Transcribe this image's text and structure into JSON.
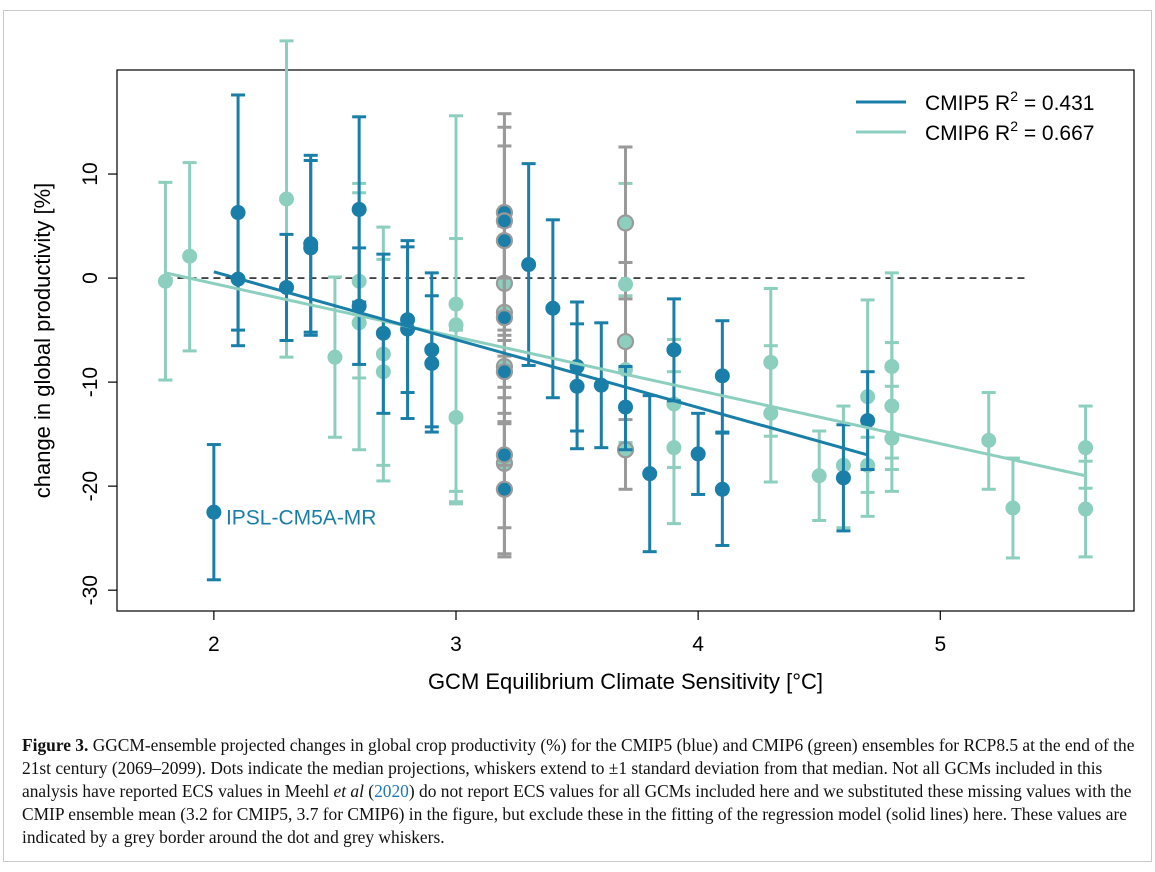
{
  "chart_data": {
    "type": "scatter",
    "xlabel": "GCM Equilibrium Climate Sensitivity [°C]",
    "ylabel": "change in global productivity [%]",
    "xlim": [
      1.6,
      5.8
    ],
    "ylim": [
      -32,
      20
    ],
    "x_ticks": [
      2,
      3,
      4,
      5
    ],
    "y_ticks": [
      -30,
      -20,
      -10,
      0,
      10
    ],
    "reference_line": 0,
    "annotation": "IPSL-CM5A-MR",
    "colors": {
      "cmip5": "#1a7fa8",
      "cmip6": "#8dcfbf",
      "grey": "#9a9a9a"
    },
    "legend": [
      {
        "series": "cmip5",
        "name": "CMIP5",
        "stat": "R",
        "sup": "2",
        "value": " = 0.431"
      },
      {
        "series": "cmip6",
        "name": "CMIP6",
        "stat": "R",
        "sup": "2",
        "value": " = 0.667"
      }
    ],
    "series": [
      {
        "name": "CMIP6",
        "key": "cmip6",
        "fit": {
          "x": [
            1.8,
            5.6
          ],
          "y": [
            0.5,
            -19.0
          ]
        },
        "points": [
          {
            "x": 1.8,
            "y": -0.3,
            "lo": -9.8,
            "hi": 9.2
          },
          {
            "x": 1.9,
            "y": 2.1,
            "lo": -7.0,
            "hi": 11.1
          },
          {
            "x": 2.3,
            "y": 7.6,
            "lo": -7.6,
            "hi": 22.8
          },
          {
            "x": 2.5,
            "y": -7.6,
            "lo": -15.3,
            "hi": 0.1
          },
          {
            "x": 2.6,
            "y": -0.3,
            "lo": -9.6,
            "hi": 9.1
          },
          {
            "x": 2.6,
            "y": -4.3,
            "lo": -16.5,
            "hi": 8.2
          },
          {
            "x": 2.7,
            "y": -7.3,
            "lo": -18.0,
            "hi": 4.9
          },
          {
            "x": 2.7,
            "y": -9.0,
            "lo": -19.5,
            "hi": 1.8
          },
          {
            "x": 3.0,
            "y": -2.5,
            "lo": -21.5,
            "hi": 15.6
          },
          {
            "x": 3.0,
            "y": -4.5,
            "lo": -20.5,
            "hi": 3.8
          },
          {
            "x": 3.0,
            "y": -13.4,
            "lo": -21.7,
            "hi": -5.0
          },
          {
            "x": 3.7,
            "y": -0.6,
            "lo": -16.0,
            "hi": 9.1
          },
          {
            "x": 3.7,
            "y": -8.8,
            "lo": -15.8,
            "hi": -1.7
          },
          {
            "x": 3.9,
            "y": -12.1,
            "lo": -18.2,
            "hi": -5.9
          },
          {
            "x": 3.9,
            "y": -16.3,
            "lo": -23.6,
            "hi": -9.0
          },
          {
            "x": 4.3,
            "y": -8.1,
            "lo": -15.2,
            "hi": -1.0
          },
          {
            "x": 4.3,
            "y": -13.0,
            "lo": -19.6,
            "hi": -6.5
          },
          {
            "x": 4.5,
            "y": -19.0,
            "lo": -23.3,
            "hi": -14.7
          },
          {
            "x": 4.6,
            "y": -18.0,
            "lo": -24.0,
            "hi": -12.3
          },
          {
            "x": 4.7,
            "y": -11.4,
            "lo": -22.9,
            "hi": -2.1
          },
          {
            "x": 4.7,
            "y": -18.0,
            "lo": -20.6,
            "hi": -15.3
          },
          {
            "x": 4.8,
            "y": -8.5,
            "lo": -17.3,
            "hi": 0.5
          },
          {
            "x": 4.8,
            "y": -12.3,
            "lo": -18.4,
            "hi": -6.2
          },
          {
            "x": 4.8,
            "y": -15.4,
            "lo": -20.5,
            "hi": -10.4
          },
          {
            "x": 5.2,
            "y": -15.6,
            "lo": -20.3,
            "hi": -11.0
          },
          {
            "x": 5.3,
            "y": -22.1,
            "lo": -26.9,
            "hi": -17.3
          },
          {
            "x": 5.6,
            "y": -16.3,
            "lo": -20.2,
            "hi": -12.3
          },
          {
            "x": 5.6,
            "y": -22.2,
            "lo": -26.8,
            "hi": -17.6
          },
          {
            "x": 3.7,
            "y": 5.3,
            "lo": -2.0,
            "hi": 12.6,
            "grey": true
          },
          {
            "x": 3.7,
            "y": -6.1,
            "lo": -13.6,
            "hi": 1.5,
            "grey": true
          },
          {
            "x": 3.7,
            "y": -16.5,
            "lo": -20.3,
            "hi": -12.6,
            "grey": true
          },
          {
            "x": 3.2,
            "y": -0.5,
            "lo": -6.0,
            "hi": 5.0,
            "grey": true
          },
          {
            "x": 3.2,
            "y": -3.3,
            "lo": -10.5,
            "hi": 3.8,
            "grey": true
          },
          {
            "x": 3.2,
            "y": -8.5,
            "lo": -14.0,
            "hi": -3.0,
            "grey": true
          },
          {
            "x": 3.2,
            "y": -17.8,
            "lo": -24.0,
            "hi": -11.5,
            "grey": true
          }
        ]
      },
      {
        "name": "CMIP5",
        "key": "cmip5",
        "fit": {
          "x": [
            2.0,
            4.7
          ],
          "y": [
            0.6,
            -17.0
          ]
        },
        "points": [
          {
            "x": 2.0,
            "y": -22.5,
            "lo": -29.0,
            "hi": -16.0
          },
          {
            "x": 2.1,
            "y": 6.3,
            "lo": -5.0,
            "hi": 17.6
          },
          {
            "x": 2.1,
            "y": -0.1,
            "lo": -6.5,
            "hi": 6.3
          },
          {
            "x": 2.3,
            "y": -0.9,
            "lo": -6.0,
            "hi": 4.2
          },
          {
            "x": 2.4,
            "y": 3.3,
            "lo": -5.2,
            "hi": 11.8
          },
          {
            "x": 2.4,
            "y": 2.9,
            "lo": -5.5,
            "hi": 11.3
          },
          {
            "x": 2.6,
            "y": 6.6,
            "lo": -2.3,
            "hi": 15.5
          },
          {
            "x": 2.6,
            "y": -2.7,
            "lo": -8.3,
            "hi": 2.9
          },
          {
            "x": 2.7,
            "y": -5.3,
            "lo": -13.0,
            "hi": 2.3
          },
          {
            "x": 2.8,
            "y": -4.0,
            "lo": -11.0,
            "hi": 3.6
          },
          {
            "x": 2.8,
            "y": -4.9,
            "lo": -13.5,
            "hi": 3.0
          },
          {
            "x": 2.9,
            "y": -6.9,
            "lo": -14.3,
            "hi": 0.5
          },
          {
            "x": 2.9,
            "y": -8.2,
            "lo": -14.8,
            "hi": -1.7
          },
          {
            "x": 3.3,
            "y": 1.3,
            "lo": -8.4,
            "hi": 11.0
          },
          {
            "x": 3.4,
            "y": -2.9,
            "lo": -11.5,
            "hi": 5.6
          },
          {
            "x": 3.5,
            "y": -8.5,
            "lo": -14.7,
            "hi": -2.3
          },
          {
            "x": 3.5,
            "y": -10.4,
            "lo": -16.4,
            "hi": -4.4
          },
          {
            "x": 3.6,
            "y": -10.3,
            "lo": -16.3,
            "hi": -4.3
          },
          {
            "x": 3.7,
            "y": -12.4,
            "lo": -16.5,
            "hi": -8.5
          },
          {
            "x": 3.8,
            "y": -18.8,
            "lo": -26.3,
            "hi": -11.3
          },
          {
            "x": 3.9,
            "y": -6.9,
            "lo": -11.8,
            "hi": -2.0
          },
          {
            "x": 4.0,
            "y": -16.9,
            "lo": -20.8,
            "hi": -13.0
          },
          {
            "x": 4.1,
            "y": -9.4,
            "lo": -14.8,
            "hi": -4.1
          },
          {
            "x": 4.1,
            "y": -20.3,
            "lo": -25.7,
            "hi": -14.9
          },
          {
            "x": 4.6,
            "y": -19.2,
            "lo": -24.3,
            "hi": -14.1
          },
          {
            "x": 4.7,
            "y": -13.7,
            "lo": -18.4,
            "hi": -9.0
          },
          {
            "x": 3.2,
            "y": 6.3,
            "lo": -5.0,
            "hi": 15.8,
            "grey": true
          },
          {
            "x": 3.2,
            "y": 5.5,
            "lo": -4.0,
            "hi": 14.5,
            "grey": true
          },
          {
            "x": 3.2,
            "y": 3.6,
            "lo": -5.5,
            "hi": 12.7,
            "grey": true
          },
          {
            "x": 3.2,
            "y": -3.8,
            "lo": -13.0,
            "hi": 5.4,
            "grey": true
          },
          {
            "x": 3.2,
            "y": -9.0,
            "lo": -18.0,
            "hi": 0.0,
            "grey": true
          },
          {
            "x": 3.2,
            "y": -17.0,
            "lo": -26.5,
            "hi": -7.5,
            "grey": true
          },
          {
            "x": 3.2,
            "y": -20.3,
            "lo": -26.8,
            "hi": -13.8,
            "grey": true
          }
        ]
      }
    ]
  },
  "caption": {
    "label": "Figure 3.",
    "text1": " GGCM-ensemble projected changes in global crop productivity (%) for the CMIP5 (blue) and CMIP6 (green) ensembles for RCP8.5 at the end of the 21st century (2069–2099). Dots indicate the median projections, whiskers extend to ±1 standard deviation from that median. Not all GCMs included in this analysis have reported ECS values in Meehl ",
    "etal": "et al",
    "open": " (",
    "year": "2020",
    "text2": ") do not report ECS values for all GCMs included here and we substituted these missing values with the CMIP ensemble mean (3.2 for CMIP5, 3.7 for CMIP6) in the figure, but exclude these in the fitting of the regression model (solid lines) here. These values are indicated by a grey border around the dot and grey whiskers."
  }
}
